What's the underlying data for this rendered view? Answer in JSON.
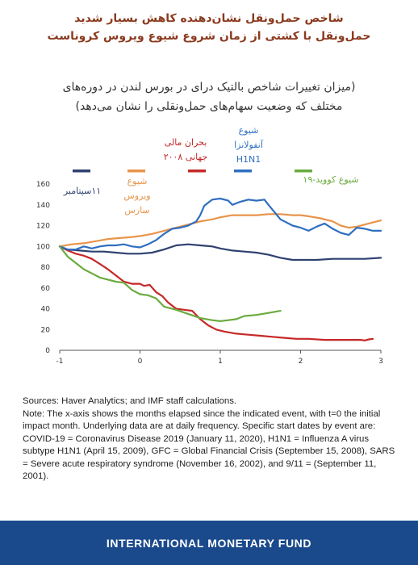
{
  "headline": {
    "line1": "شاخص حمل‌ونقل نشان‌دهنده کاهش بسیار شدید",
    "line2": "حمل‌ونقل با کشتی از زمان شروع شیوع ویروس کروناست"
  },
  "subtitle": {
    "line1": "(میزان تغییرات شاخص بالتیک درای در بورس لندن در دوره‌های",
    "line2": "مختلف که وضعیت سهام‌های حمل‌ونقلی را نشان می‌دهد)"
  },
  "colors": {
    "sept11": "#2e4170",
    "sars": "#e8944a",
    "gfc": "#c62828",
    "h1n1": "#2f6fc0",
    "covid": "#6aab3f"
  },
  "chart_data": {
    "type": "line",
    "xlim": [
      -1,
      3
    ],
    "ylim": [
      0,
      160
    ],
    "x_ticks": [
      -1,
      0,
      1,
      2,
      3
    ],
    "y_ticks": [
      0,
      20,
      40,
      60,
      80,
      100,
      120,
      140,
      160
    ],
    "grid": false,
    "series": [
      {
        "key": "sept11",
        "name": "۱۱سپتامبر",
        "points": [
          [
            -1,
            100
          ],
          [
            -0.9,
            97
          ],
          [
            -0.75,
            96
          ],
          [
            -0.6,
            95
          ],
          [
            -0.45,
            95
          ],
          [
            -0.3,
            94
          ],
          [
            -0.15,
            93
          ],
          [
            0,
            93
          ],
          [
            0.15,
            94
          ],
          [
            0.3,
            97
          ],
          [
            0.45,
            101
          ],
          [
            0.6,
            102
          ],
          [
            0.75,
            101
          ],
          [
            0.9,
            100
          ],
          [
            1,
            98
          ],
          [
            1.15,
            96
          ],
          [
            1.3,
            95
          ],
          [
            1.45,
            94
          ],
          [
            1.6,
            92
          ],
          [
            1.75,
            89
          ],
          [
            1.9,
            87
          ],
          [
            2,
            87
          ],
          [
            2.2,
            87
          ],
          [
            2.4,
            88
          ],
          [
            2.6,
            88
          ],
          [
            2.8,
            88
          ],
          [
            3,
            89
          ]
        ]
      },
      {
        "key": "sars",
        "name": "شیوع ویروس سارس",
        "points": [
          [
            -1,
            100
          ],
          [
            -0.85,
            102
          ],
          [
            -0.7,
            103
          ],
          [
            -0.55,
            105
          ],
          [
            -0.4,
            107
          ],
          [
            -0.25,
            108
          ],
          [
            -0.1,
            109
          ],
          [
            0,
            110
          ],
          [
            0.15,
            112
          ],
          [
            0.3,
            115
          ],
          [
            0.45,
            118
          ],
          [
            0.6,
            121
          ],
          [
            0.75,
            124
          ],
          [
            0.9,
            126
          ],
          [
            1,
            128
          ],
          [
            1.15,
            130
          ],
          [
            1.3,
            130
          ],
          [
            1.45,
            130
          ],
          [
            1.6,
            131
          ],
          [
            1.75,
            131
          ],
          [
            1.9,
            130
          ],
          [
            2,
            130
          ],
          [
            2.1,
            129
          ],
          [
            2.25,
            127
          ],
          [
            2.4,
            124
          ],
          [
            2.5,
            120
          ],
          [
            2.6,
            118
          ],
          [
            2.7,
            119
          ],
          [
            2.8,
            121
          ],
          [
            2.9,
            123
          ],
          [
            3,
            125
          ]
        ]
      },
      {
        "key": "gfc",
        "name": "بحران مالی جهانی ۲۰۰۸",
        "points": [
          [
            -1,
            100
          ],
          [
            -0.9,
            96
          ],
          [
            -0.8,
            93
          ],
          [
            -0.7,
            91
          ],
          [
            -0.6,
            88
          ],
          [
            -0.5,
            83
          ],
          [
            -0.4,
            78
          ],
          [
            -0.3,
            72
          ],
          [
            -0.2,
            66
          ],
          [
            -0.1,
            64
          ],
          [
            0,
            64
          ],
          [
            0.05,
            62
          ],
          [
            0.12,
            63
          ],
          [
            0.2,
            56
          ],
          [
            0.28,
            52
          ],
          [
            0.35,
            46
          ],
          [
            0.45,
            40
          ],
          [
            0.55,
            39
          ],
          [
            0.65,
            38
          ],
          [
            0.75,
            30
          ],
          [
            0.85,
            24
          ],
          [
            0.95,
            20
          ],
          [
            1.05,
            18
          ],
          [
            1.2,
            16
          ],
          [
            1.35,
            15
          ],
          [
            1.5,
            14
          ],
          [
            1.65,
            13
          ],
          [
            1.8,
            12
          ],
          [
            1.95,
            11
          ],
          [
            2.1,
            11
          ],
          [
            2.3,
            10
          ],
          [
            2.5,
            10
          ],
          [
            2.65,
            10
          ],
          [
            2.75,
            10
          ],
          [
            2.8,
            9.5
          ],
          [
            2.85,
            10.5
          ],
          [
            2.9,
            11
          ]
        ]
      },
      {
        "key": "h1n1",
        "name": "شیوع آنفولانزا H1N1",
        "points": [
          [
            -1,
            100
          ],
          [
            -0.9,
            97
          ],
          [
            -0.8,
            97
          ],
          [
            -0.7,
            100
          ],
          [
            -0.6,
            98
          ],
          [
            -0.5,
            100
          ],
          [
            -0.4,
            101
          ],
          [
            -0.3,
            101
          ],
          [
            -0.2,
            102
          ],
          [
            -0.1,
            100
          ],
          [
            0,
            99
          ],
          [
            0.1,
            102
          ],
          [
            0.2,
            106
          ],
          [
            0.3,
            112
          ],
          [
            0.4,
            117
          ],
          [
            0.5,
            118
          ],
          [
            0.6,
            120
          ],
          [
            0.7,
            124
          ],
          [
            0.75,
            130
          ],
          [
            0.8,
            139
          ],
          [
            0.9,
            145
          ],
          [
            1,
            146
          ],
          [
            1.1,
            144
          ],
          [
            1.15,
            140
          ],
          [
            1.25,
            143
          ],
          [
            1.35,
            145
          ],
          [
            1.45,
            144
          ],
          [
            1.55,
            145
          ],
          [
            1.6,
            140
          ],
          [
            1.75,
            126
          ],
          [
            1.9,
            120
          ],
          [
            2,
            118
          ],
          [
            2.1,
            115
          ],
          [
            2.2,
            119
          ],
          [
            2.3,
            122
          ],
          [
            2.4,
            117
          ],
          [
            2.5,
            113
          ],
          [
            2.6,
            111
          ],
          [
            2.7,
            118
          ],
          [
            2.8,
            117
          ],
          [
            2.9,
            115
          ],
          [
            3,
            115
          ]
        ]
      },
      {
        "key": "covid",
        "name": "شیوع کووید-۱۹",
        "points": [
          [
            -1,
            100
          ],
          [
            -0.9,
            90
          ],
          [
            -0.8,
            84
          ],
          [
            -0.7,
            78
          ],
          [
            -0.6,
            74
          ],
          [
            -0.5,
            70
          ],
          [
            -0.4,
            68
          ],
          [
            -0.3,
            66
          ],
          [
            -0.2,
            65
          ],
          [
            -0.1,
            58
          ],
          [
            0,
            54
          ],
          [
            0.1,
            53
          ],
          [
            0.2,
            50
          ],
          [
            0.3,
            42
          ],
          [
            0.45,
            39
          ],
          [
            0.6,
            35
          ],
          [
            0.75,
            31
          ],
          [
            0.9,
            29
          ],
          [
            1,
            28
          ],
          [
            1.1,
            29
          ],
          [
            1.2,
            30
          ],
          [
            1.3,
            33
          ],
          [
            1.45,
            34
          ],
          [
            1.6,
            36
          ],
          [
            1.75,
            38
          ]
        ]
      }
    ],
    "legend_labels": {
      "sept11": "۱۱سپتامبر",
      "sars_1": "شیوع",
      "sars_2": "ویروس",
      "sars_3": "سارس",
      "gfc_1": "بحران مالی",
      "gfc_2": "جهانی ۲۰۰۸",
      "h1n1_1": "شیوع",
      "h1n1_2": "آنفولانزا",
      "h1n1_3": "H1N1",
      "covid": "شیوع کووید-۱۹"
    }
  },
  "sources_text": "Sources: Haver Analytics; and IMF staff calculations.",
  "note_text": "Note: The x-axis shows the months elapsed since the indicated event, with t=0 the initial impact month. Underlying data are at daily frequency. Specific start dates by event are: COVID-19 = Coronavirus Disease 2019 (January 11, 2020), H1N1 = Influenza A virus subtype H1N1 (April 15, 2009), GFC = Global Financial Crisis (September 15, 2008), SARS = Severe acute respiratory syndrome (November 16, 2002), and 9/11 = (September 11, 2001).",
  "footer": {
    "org": "INTERNATIONAL MONETARY FUND"
  }
}
